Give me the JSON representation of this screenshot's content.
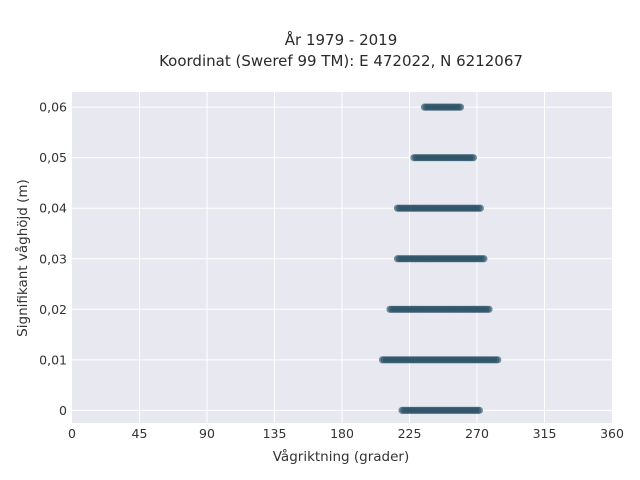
{
  "chart_data": {
    "type": "scatter",
    "title_lines": [
      "År 1979 - 2019",
      "Koordinat (Sweref 99 TM): E 472022, N 6212067"
    ],
    "xlabel": "Vågriktning (grader)",
    "ylabel": "Signifikant våghöjd (m)",
    "xlim": [
      0,
      360
    ],
    "ylim": [
      -0.0025,
      0.063
    ],
    "x_ticks": [
      0,
      45,
      90,
      135,
      180,
      225,
      270,
      315,
      360
    ],
    "x_tick_labels": [
      "0",
      "45",
      "90",
      "135",
      "180",
      "225",
      "270",
      "315",
      "360"
    ],
    "y_ticks": [
      0,
      0.01,
      0.02,
      0.03,
      0.04,
      0.05,
      0.06
    ],
    "y_tick_labels": [
      "0",
      "0,01",
      "0,02",
      "0,03",
      "0,04",
      "0,05",
      "0,06"
    ],
    "grid": true,
    "background": "#e8e8f0",
    "point_color": "#2e5468",
    "bands": [
      {
        "y": 0.0,
        "x_min": 220,
        "x_max": 272
      },
      {
        "y": 0.01,
        "x_min": 207,
        "x_max": 284
      },
      {
        "y": 0.02,
        "x_min": 212,
        "x_max": 278
      },
      {
        "y": 0.03,
        "x_min": 217,
        "x_max": 275
      },
      {
        "y": 0.04,
        "x_min": 217,
        "x_max": 273
      },
      {
        "y": 0.05,
        "x_min": 228,
        "x_max": 268
      },
      {
        "y": 0.06,
        "x_min": 235,
        "x_max": 260
      }
    ]
  }
}
